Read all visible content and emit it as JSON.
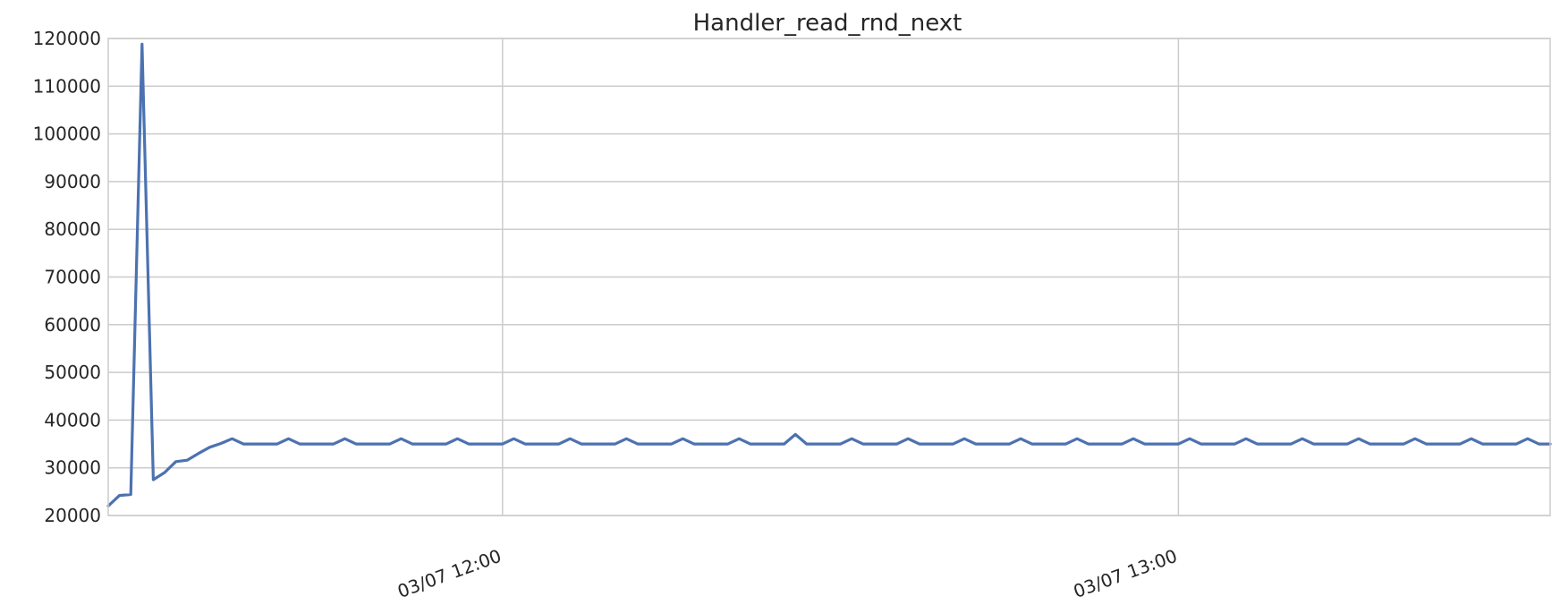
{
  "chart_data": {
    "type": "line",
    "title": "Handler_read_rnd_next",
    "xlabel": "",
    "ylabel": "",
    "x_axis": {
      "start": "03/07 11:25",
      "interval_minutes": 1,
      "ticks": [
        {
          "value": "03/07 12:00",
          "label": "03/07 12:00"
        },
        {
          "value": "03/07 13:00",
          "label": "03/07 13:00"
        }
      ]
    },
    "y_axis": {
      "ylim": [
        20000,
        120000
      ],
      "ticks": [
        20000,
        30000,
        40000,
        50000,
        60000,
        70000,
        80000,
        90000,
        100000,
        110000,
        120000
      ]
    },
    "grid": true,
    "line_color": "#4c72b0",
    "grid_color": "#cccccc",
    "series": [
      {
        "values": [
          22000,
          24200,
          24400,
          118800,
          27500,
          29000,
          31300,
          31600,
          33000,
          34300,
          35100,
          36100,
          35000,
          35000,
          35000,
          35000,
          36100,
          35000,
          35000,
          35000,
          35000,
          36100,
          35000,
          35000,
          35000,
          35000,
          36100,
          35000,
          35000,
          35000,
          35000,
          36100,
          35000,
          35000,
          35000,
          35000,
          36100,
          35000,
          35000,
          35000,
          35000,
          36100,
          35000,
          35000,
          35000,
          35000,
          36100,
          35000,
          35000,
          35000,
          35000,
          36100,
          35000,
          35000,
          35000,
          35000,
          36100,
          35000,
          35000,
          35000,
          35000,
          37000,
          35000,
          35000,
          35000,
          35000,
          36100,
          35000,
          35000,
          35000,
          35000,
          36100,
          35000,
          35000,
          35000,
          35000,
          36100,
          35000,
          35000,
          35000,
          35000,
          36100,
          35000,
          35000,
          35000,
          35000,
          36100,
          35000,
          35000,
          35000,
          35000,
          36100,
          35000,
          35000,
          35000,
          35000,
          36100,
          35000,
          35000,
          35000,
          35000,
          36100,
          35000,
          35000,
          35000,
          35000,
          36100,
          35000,
          35000,
          35000,
          35000,
          36100,
          35000,
          35000,
          35000,
          35000,
          36100,
          35000,
          35000,
          35000,
          35000,
          36100,
          35000,
          35000,
          35000,
          35000,
          36100,
          35000,
          35000
        ]
      }
    ]
  }
}
